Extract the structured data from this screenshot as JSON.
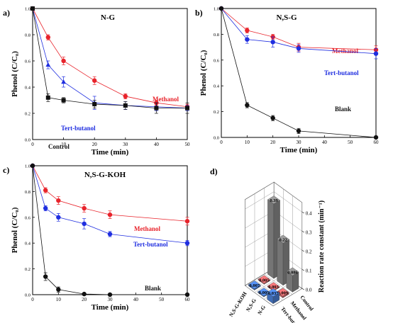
{
  "panels": [
    {
      "label": "a)",
      "title": "N-G",
      "xlabel": "Time (min)",
      "ylabel": "Phenol (C/C₀)",
      "xlim": [
        0,
        50
      ],
      "ylim": [
        0,
        1.0
      ],
      "xticks": [
        0,
        10,
        20,
        30,
        40,
        50
      ],
      "yticks": [
        0.0,
        0.2,
        0.4,
        0.6,
        0.8,
        1.0
      ],
      "tick_labels_x": [
        "0",
        "10",
        "20",
        "30",
        "40",
        "50"
      ],
      "tick_labels_y": [
        "0.0",
        "0.2",
        "0.4",
        "0.6",
        "0.8",
        "1.0"
      ],
      "series": [
        {
          "name": "Methanol",
          "color": "#e8232b",
          "marker": "circle",
          "x": [
            0,
            5,
            10,
            20,
            30,
            40,
            50
          ],
          "y": [
            1.0,
            0.78,
            0.6,
            0.45,
            0.33,
            0.28,
            0.25
          ],
          "err": [
            0,
            0.02,
            0.03,
            0.03,
            0.02,
            0.02,
            0.02
          ],
          "label_text": "Methanol"
        },
        {
          "name": "Tert-butanol",
          "color": "#1f2ee0",
          "marker": "triangle",
          "x": [
            0,
            5,
            10,
            20,
            30,
            40,
            50
          ],
          "y": [
            1.0,
            0.57,
            0.44,
            0.28,
            0.26,
            0.25,
            0.24
          ],
          "err": [
            0,
            0.03,
            0.04,
            0.05,
            0.03,
            0.03,
            0.02
          ],
          "label_text": "Tert-butanol"
        },
        {
          "name": "Control",
          "color": "#111111",
          "marker": "square",
          "x": [
            0,
            5,
            10,
            20,
            30,
            40,
            50
          ],
          "y": [
            1.0,
            0.32,
            0.3,
            0.27,
            0.26,
            0.24,
            0.24
          ],
          "err": [
            0,
            0.03,
            0.02,
            0.03,
            0.03,
            0.04,
            0.04
          ],
          "label_text": "Control"
        }
      ]
    },
    {
      "label": "b)",
      "title": "N,S-G",
      "xlabel": "Time (min)",
      "ylabel": "Phenol (C/C₀)",
      "xlim": [
        0,
        60
      ],
      "ylim": [
        0,
        1.0
      ],
      "xticks": [
        0,
        10,
        20,
        30,
        40,
        50,
        60
      ],
      "yticks": [
        0.0,
        0.2,
        0.4,
        0.6,
        0.8,
        1.0
      ],
      "tick_labels_x": [
        "0",
        "10",
        "20",
        "30",
        "40",
        "50",
        "60"
      ],
      "tick_labels_y": [
        "0.0",
        "0.2",
        "0.4",
        "0.6",
        "0.8",
        "1.0"
      ],
      "series": [
        {
          "name": "Methanol",
          "color": "#e8232b",
          "marker": "circle",
          "x": [
            0,
            10,
            20,
            30,
            60
          ],
          "y": [
            1.0,
            0.83,
            0.78,
            0.7,
            0.68
          ],
          "err": [
            0,
            0.02,
            0.02,
            0.03,
            0.03
          ],
          "label_text": "Methanol"
        },
        {
          "name": "Tert-butanol",
          "color": "#1f2ee0",
          "marker": "circle",
          "x": [
            0,
            10,
            20,
            30,
            60
          ],
          "y": [
            1.0,
            0.76,
            0.74,
            0.69,
            0.65
          ],
          "err": [
            0,
            0.03,
            0.04,
            0.03,
            0.04
          ],
          "label_text": "Tert-butanol"
        },
        {
          "name": "Blank",
          "color": "#111111",
          "marker": "circle",
          "x": [
            0,
            10,
            20,
            30,
            60
          ],
          "y": [
            1.0,
            0.25,
            0.15,
            0.05,
            0.0
          ],
          "err": [
            0,
            0.02,
            0.02,
            0.02,
            0
          ],
          "label_text": "Blank"
        }
      ]
    },
    {
      "label": "c)",
      "title": "N,S-G-KOH",
      "xlabel": "Time (min)",
      "ylabel": "Phenol (C/C₀)",
      "xlim": [
        0,
        60
      ],
      "ylim": [
        0,
        1.0
      ],
      "xticks": [
        0,
        10,
        20,
        30,
        40,
        50,
        60
      ],
      "yticks": [
        0.0,
        0.2,
        0.4,
        0.6,
        0.8,
        1.0
      ],
      "tick_labels_x": [
        "0",
        "10",
        "20",
        "30",
        "40",
        "50",
        "60"
      ],
      "tick_labels_y": [
        "0.0",
        "0.2",
        "0.4",
        "0.6",
        "0.8",
        "1.0"
      ],
      "series": [
        {
          "name": "Methanol",
          "color": "#e8232b",
          "marker": "circle",
          "x": [
            0,
            5,
            10,
            20,
            30,
            60
          ],
          "y": [
            1.0,
            0.81,
            0.73,
            0.67,
            0.62,
            0.57
          ],
          "err": [
            0,
            0.02,
            0.03,
            0.03,
            0.03,
            0.03
          ],
          "label_text": "Methanol"
        },
        {
          "name": "Tert-butanol",
          "color": "#1f2ee0",
          "marker": "circle",
          "x": [
            0,
            5,
            10,
            20,
            30,
            60
          ],
          "y": [
            1.0,
            0.67,
            0.6,
            0.55,
            0.47,
            0.4
          ],
          "err": [
            0,
            0.02,
            0.03,
            0.04,
            0.02,
            0.02
          ],
          "label_text": "Tert-butanol"
        },
        {
          "name": "Blank",
          "color": "#111111",
          "marker": "circle",
          "x": [
            0,
            5,
            10,
            20,
            30,
            60
          ],
          "y": [
            1.0,
            0.14,
            0.04,
            0.005,
            0.0,
            0.0
          ],
          "err": [
            0,
            0.03,
            0.02,
            0,
            0,
            0
          ],
          "label_text": "Blank"
        }
      ]
    }
  ],
  "panel_d": {
    "label": "d)",
    "zlabel": "Reaction rate constant (min⁻¹)",
    "zticks": [
      "0.0",
      "0.1",
      "0.2",
      "0.3",
      "0.4"
    ],
    "rows": [
      "N,S-G-KOH",
      "N,S-G",
      "N-G"
    ],
    "cols": [
      "Control",
      "Methanol",
      "Tert-butanol"
    ],
    "bars": [
      {
        "row": "N,S-G-KOH",
        "col": "Control",
        "value": 0.39,
        "label": "0.39"
      },
      {
        "row": "N,S-G",
        "col": "Control",
        "value": 0.22,
        "label": "0.22"
      },
      {
        "row": "N-G",
        "col": "Control",
        "value": 0.086,
        "label": "0.086"
      },
      {
        "row": "N,S-G-KOH",
        "col": "Methanol",
        "value": 0.005,
        "label": "0.005"
      },
      {
        "row": "N,S-G",
        "col": "Methanol",
        "value": 0.003,
        "label": "0.003"
      },
      {
        "row": "N-G",
        "col": "Methanol",
        "value": 0.009,
        "label": "0.009"
      },
      {
        "row": "N,S-G-KOH",
        "col": "Tert-butanol",
        "value": 0.007,
        "label": "0.007"
      },
      {
        "row": "N,S-G",
        "col": "Tert-butanol",
        "value": 0.005,
        "label": "0.005"
      },
      {
        "row": "N-G",
        "col": "Tert-butanol",
        "value": 0.037,
        "label": "0.037"
      }
    ],
    "colors": {
      "Control": "#8a8a8a",
      "Methanol": "#d9686b",
      "Tert-butanol": "#4a7fd6"
    }
  },
  "chart_data": [
    {
      "type": "line",
      "title": "N-G",
      "xlabel": "Time (min)",
      "ylabel": "Phenol (C/C₀)",
      "xlim": [
        0,
        50
      ],
      "ylim": [
        0,
        1.0
      ],
      "series": [
        {
          "name": "Methanol",
          "x": [
            0,
            5,
            10,
            20,
            30,
            40,
            50
          ],
          "y": [
            1.0,
            0.78,
            0.6,
            0.45,
            0.33,
            0.28,
            0.25
          ]
        },
        {
          "name": "Tert-butanol",
          "x": [
            0,
            5,
            10,
            20,
            30,
            40,
            50
          ],
          "y": [
            1.0,
            0.57,
            0.44,
            0.28,
            0.26,
            0.25,
            0.24
          ]
        },
        {
          "name": "Control",
          "x": [
            0,
            5,
            10,
            20,
            30,
            40,
            50
          ],
          "y": [
            1.0,
            0.32,
            0.3,
            0.27,
            0.26,
            0.24,
            0.24
          ]
        }
      ]
    },
    {
      "type": "line",
      "title": "N,S-G",
      "xlabel": "Time (min)",
      "ylabel": "Phenol (C/C₀)",
      "xlim": [
        0,
        60
      ],
      "ylim": [
        0,
        1.0
      ],
      "series": [
        {
          "name": "Methanol",
          "x": [
            0,
            10,
            20,
            30,
            60
          ],
          "y": [
            1.0,
            0.83,
            0.78,
            0.7,
            0.68
          ]
        },
        {
          "name": "Tert-butanol",
          "x": [
            0,
            10,
            20,
            30,
            60
          ],
          "y": [
            1.0,
            0.76,
            0.74,
            0.69,
            0.65
          ]
        },
        {
          "name": "Blank",
          "x": [
            0,
            10,
            20,
            30,
            60
          ],
          "y": [
            1.0,
            0.25,
            0.15,
            0.05,
            0.0
          ]
        }
      ]
    },
    {
      "type": "line",
      "title": "N,S-G-KOH",
      "xlabel": "Time (min)",
      "ylabel": "Phenol (C/C₀)",
      "xlim": [
        0,
        60
      ],
      "ylim": [
        0,
        1.0
      ],
      "series": [
        {
          "name": "Methanol",
          "x": [
            0,
            5,
            10,
            20,
            30,
            60
          ],
          "y": [
            1.0,
            0.81,
            0.73,
            0.67,
            0.62,
            0.57
          ]
        },
        {
          "name": "Tert-butanol",
          "x": [
            0,
            5,
            10,
            20,
            30,
            60
          ],
          "y": [
            1.0,
            0.67,
            0.6,
            0.55,
            0.47,
            0.4
          ]
        },
        {
          "name": "Blank",
          "x": [
            0,
            5,
            10,
            20,
            30,
            60
          ],
          "y": [
            1.0,
            0.14,
            0.04,
            0.005,
            0.0,
            0.0
          ]
        }
      ]
    },
    {
      "type": "bar",
      "title": "",
      "zlabel": "Reaction rate constant (min⁻¹)",
      "categories_rows": [
        "N,S-G-KOH",
        "N,S-G",
        "N-G"
      ],
      "categories_cols": [
        "Control",
        "Methanol",
        "Tert-butanol"
      ],
      "values": [
        [
          0.39,
          0.005,
          0.007
        ],
        [
          0.22,
          0.003,
          0.005
        ],
        [
          0.086,
          0.009,
          0.037
        ]
      ]
    }
  ]
}
